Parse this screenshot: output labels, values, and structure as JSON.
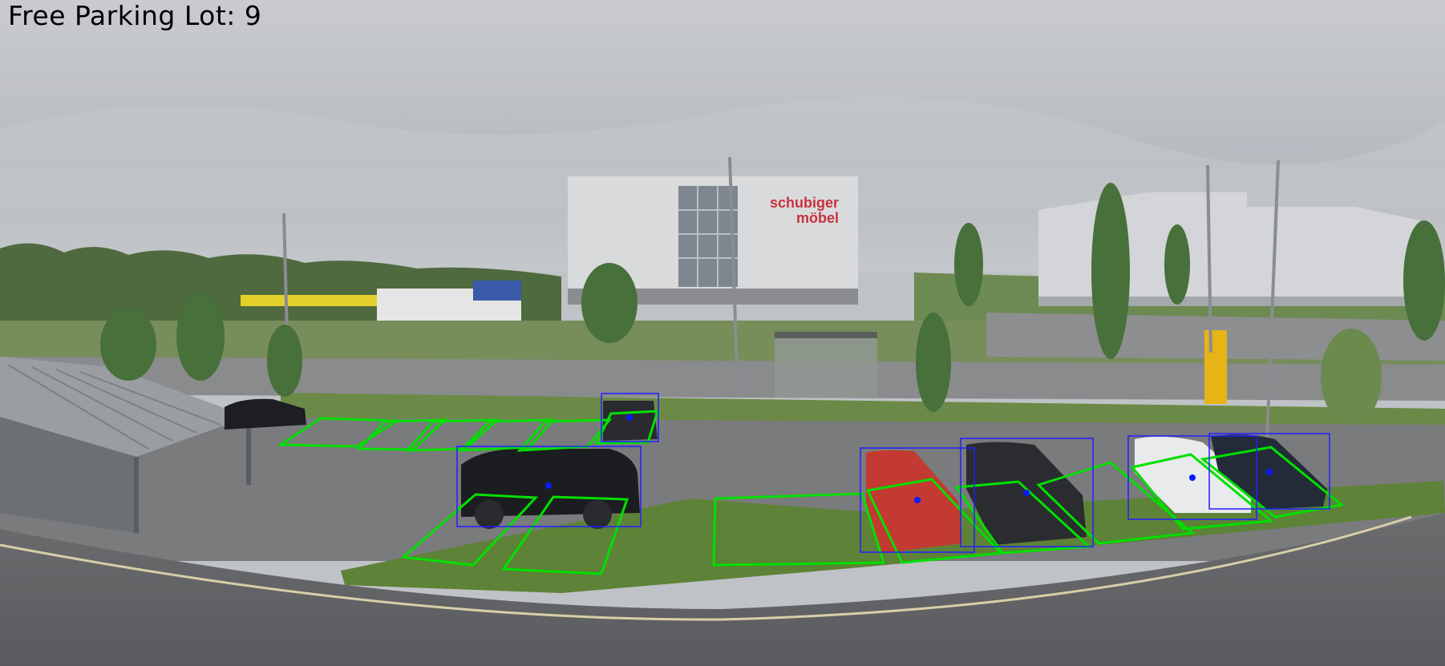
{
  "overlay": {
    "status_label": "Free Parking Lot: 9",
    "slot_outline_color": "#00e000",
    "detection_box_color": "#2020ff",
    "free_slot_count": 9
  },
  "scene": {
    "building_sign_line1": "schubiger",
    "building_sign_line2": "möbel",
    "sign_color": "#c8323c"
  }
}
